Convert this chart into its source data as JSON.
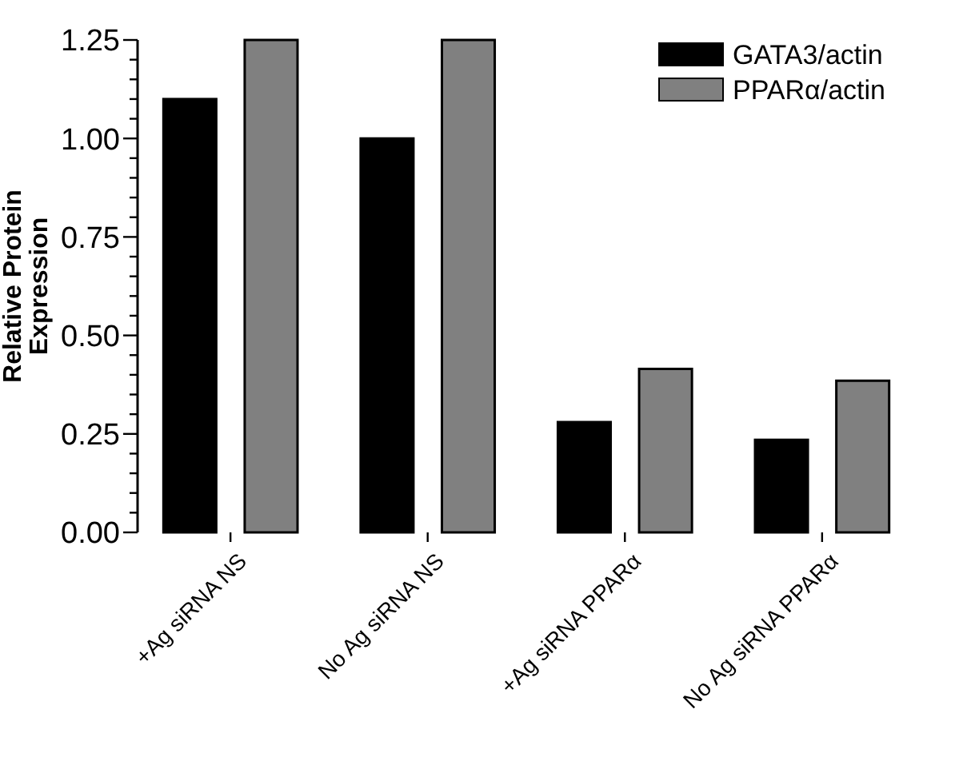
{
  "chart_data": {
    "type": "bar",
    "ylabel": "Relative Protein Expression",
    "categories": [
      "+Ag siRNA NS",
      "No Ag siRNA NS",
      "+Ag siRNA PPARα",
      "No Ag siRNA PPARα"
    ],
    "series": [
      {
        "name": "GATA3/actin",
        "color": "#000000",
        "values": [
          1.1,
          1.0,
          0.28,
          0.235
        ]
      },
      {
        "name": "PPARα/actin",
        "color": "#808080",
        "values": [
          1.25,
          1.25,
          0.415,
          0.385
        ]
      }
    ],
    "ylim": [
      0,
      1.25
    ],
    "yticks": [
      "0.00",
      {
        "value": 0.05,
        "label": null
      },
      {
        "value": 0.1,
        "label": null
      },
      {
        "value": 0.15,
        "label": null
      },
      {
        "value": 0.2,
        "label": null
      },
      {
        "value": 0.25,
        "label": "0.25"
      },
      {
        "value": 0.3,
        "label": null
      },
      {
        "value": 0.35,
        "label": null
      },
      {
        "value": 0.4,
        "label": null
      },
      {
        "value": 0.45,
        "label": null
      },
      {
        "value": 0.5,
        "label": "0.50"
      },
      {
        "value": 0.55,
        "label": null
      },
      {
        "value": 0.6,
        "label": null
      },
      {
        "value": 0.65,
        "label": null
      },
      {
        "value": 0.7,
        "label": null
      },
      {
        "value": 0.75,
        "label": "0.75"
      },
      {
        "value": 0.8,
        "label": null
      },
      {
        "value": 0.85,
        "label": null
      },
      {
        "value": 0.9,
        "label": null
      },
      {
        "value": 0.95,
        "label": null
      },
      {
        "value": 1.0,
        "label": "1.00"
      },
      {
        "value": 1.05,
        "label": null
      },
      {
        "value": 1.1,
        "label": null
      },
      {
        "value": 1.15,
        "label": null
      },
      {
        "value": 1.2,
        "label": null
      },
      {
        "value": 1.25,
        "label": "1.25"
      }
    ],
    "grid": false,
    "legend": "top right"
  }
}
